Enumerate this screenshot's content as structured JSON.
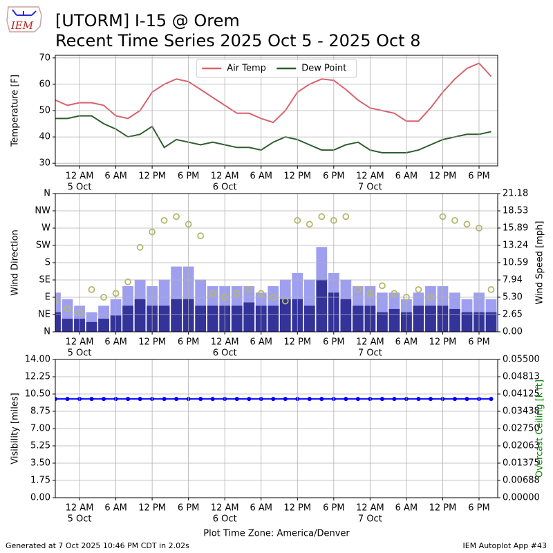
{
  "title": "[UTORM] I-15 @ Orem",
  "subtitle": "Recent Time Series 2025 Oct 5 - 2025 Oct 8",
  "logo_text": "IEM",
  "footer_left": "Generated at 7 Oct 2025 10:46 PM CDT in 2.02s",
  "footer_right": "IEM Autoplot App #43",
  "chart_data": [
    {
      "type": "line",
      "ylabel": "Temperature [F]",
      "legend": "upper center",
      "grid": true,
      "xlim": [
        "2025-10-04T20:00",
        "2025-10-07T21:05"
      ],
      "xticks": [
        {
          "value": "2025-10-05T00:00",
          "label": "12 AM"
        },
        {
          "value": "2025-10-05T06:00",
          "label": "6 AM"
        },
        {
          "value": "2025-10-05T12:00",
          "label": "12 PM"
        },
        {
          "value": "2025-10-05T18:00",
          "label": "6 PM"
        },
        {
          "value": "2025-10-06T00:00",
          "label": "12 AM"
        },
        {
          "value": "2025-10-06T06:00",
          "label": "6 AM"
        },
        {
          "value": "2025-10-06T12:00",
          "label": "12 PM"
        },
        {
          "value": "2025-10-06T18:00",
          "label": "6 PM"
        },
        {
          "value": "2025-10-07T00:00",
          "label": "12 AM"
        },
        {
          "value": "2025-10-07T06:00",
          "label": "6 AM"
        },
        {
          "value": "2025-10-07T12:00",
          "label": "12 PM"
        },
        {
          "value": "2025-10-07T18:00",
          "label": "6 PM"
        }
      ],
      "xdaylabels": [
        {
          "value": "2025-10-05T00:00",
          "label": "5 Oct"
        },
        {
          "value": "2025-10-06T00:00",
          "label": "6 Oct"
        },
        {
          "value": "2025-10-07T00:00",
          "label": "7 Oct"
        }
      ],
      "ylim": [
        29,
        71
      ],
      "yticks": [
        30,
        40,
        50,
        60,
        70
      ],
      "x": [
        "2025-10-04T20:00",
        "2025-10-04T22:00",
        "2025-10-05T00:00",
        "2025-10-05T02:00",
        "2025-10-05T04:00",
        "2025-10-05T06:00",
        "2025-10-05T08:00",
        "2025-10-05T10:00",
        "2025-10-05T12:00",
        "2025-10-05T14:00",
        "2025-10-05T16:00",
        "2025-10-05T18:00",
        "2025-10-05T20:00",
        "2025-10-05T22:00",
        "2025-10-06T00:00",
        "2025-10-06T02:00",
        "2025-10-06T04:00",
        "2025-10-06T06:00",
        "2025-10-06T08:00",
        "2025-10-06T10:00",
        "2025-10-06T12:00",
        "2025-10-06T14:00",
        "2025-10-06T16:00",
        "2025-10-06T18:00",
        "2025-10-06T20:00",
        "2025-10-06T22:00",
        "2025-10-07T00:00",
        "2025-10-07T02:00",
        "2025-10-07T04:00",
        "2025-10-07T06:00",
        "2025-10-07T08:00",
        "2025-10-07T10:00",
        "2025-10-07T12:00",
        "2025-10-07T14:00",
        "2025-10-07T16:00",
        "2025-10-07T18:00",
        "2025-10-07T20:00"
      ],
      "series": [
        {
          "name": "Air Temp",
          "color": "#d9626b",
          "values": [
            54,
            52,
            53,
            53,
            52,
            48,
            47,
            50,
            57,
            60,
            62,
            61,
            58,
            55,
            52,
            49,
            49,
            47,
            45.5,
            50,
            57,
            60,
            62,
            61.5,
            58,
            54,
            51,
            50,
            49,
            46,
            46,
            51,
            57,
            62,
            66,
            68,
            63
          ]
        },
        {
          "name": "Dew Point",
          "color": "#2d5e2d",
          "values": [
            47,
            47,
            48,
            48,
            45,
            43,
            40,
            41,
            44,
            36,
            39,
            38,
            37,
            38,
            37,
            36,
            36,
            35,
            38,
            40,
            39,
            37,
            35,
            35,
            37,
            38,
            35,
            34,
            34,
            34,
            35,
            37,
            39,
            40,
            41,
            41,
            42
          ]
        }
      ]
    },
    {
      "type": "combo",
      "ylabel": "Wind Direction",
      "y2label": "Wind Speed [mph]",
      "grid": true,
      "xlim": [
        "2025-10-04T20:00",
        "2025-10-07T21:05"
      ],
      "xticks": [
        {
          "value": "2025-10-05T00:00",
          "label": "12 AM"
        },
        {
          "value": "2025-10-05T06:00",
          "label": "6 AM"
        },
        {
          "value": "2025-10-05T12:00",
          "label": "12 PM"
        },
        {
          "value": "2025-10-05T18:00",
          "label": "6 PM"
        },
        {
          "value": "2025-10-06T00:00",
          "label": "12 AM"
        },
        {
          "value": "2025-10-06T06:00",
          "label": "6 AM"
        },
        {
          "value": "2025-10-06T12:00",
          "label": "12 PM"
        },
        {
          "value": "2025-10-06T18:00",
          "label": "6 PM"
        },
        {
          "value": "2025-10-07T00:00",
          "label": "12 AM"
        },
        {
          "value": "2025-10-07T06:00",
          "label": "6 AM"
        },
        {
          "value": "2025-10-07T12:00",
          "label": "12 PM"
        },
        {
          "value": "2025-10-07T18:00",
          "label": "6 PM"
        }
      ],
      "xdaylabels": [
        {
          "value": "2025-10-05T00:00",
          "label": "5 Oct"
        },
        {
          "value": "2025-10-06T00:00",
          "label": "6 Oct"
        },
        {
          "value": "2025-10-07T00:00",
          "label": "7 Oct"
        }
      ],
      "ylim": [
        0,
        360
      ],
      "yticks": [
        {
          "value": 0,
          "label": "N"
        },
        {
          "value": 45,
          "label": "NE"
        },
        {
          "value": 90,
          "label": "E"
        },
        {
          "value": 135,
          "label": "SE"
        },
        {
          "value": 180,
          "label": "S"
        },
        {
          "value": 225,
          "label": "SW"
        },
        {
          "value": 270,
          "label": "W"
        },
        {
          "value": 315,
          "label": "NW"
        },
        {
          "value": 360,
          "label": "N"
        }
      ],
      "y2lim": [
        0,
        21.18
      ],
      "y2ticks": [
        {
          "value": 0,
          "label": "0.00"
        },
        2.65,
        {
          "value": 5.3,
          "label": "5.30"
        },
        7.94,
        10.59,
        13.24,
        15.89,
        18.53,
        21.18
      ],
      "x": [
        "2025-10-04T20:00",
        "2025-10-04T22:00",
        "2025-10-05T00:00",
        "2025-10-05T02:00",
        "2025-10-05T04:00",
        "2025-10-05T06:00",
        "2025-10-05T08:00",
        "2025-10-05T10:00",
        "2025-10-05T12:00",
        "2025-10-05T14:00",
        "2025-10-05T16:00",
        "2025-10-05T18:00",
        "2025-10-05T20:00",
        "2025-10-05T22:00",
        "2025-10-06T00:00",
        "2025-10-06T02:00",
        "2025-10-06T04:00",
        "2025-10-06T06:00",
        "2025-10-06T08:00",
        "2025-10-06T10:00",
        "2025-10-06T12:00",
        "2025-10-06T14:00",
        "2025-10-06T16:00",
        "2025-10-06T18:00",
        "2025-10-06T20:00",
        "2025-10-06T22:00",
        "2025-10-07T00:00",
        "2025-10-07T02:00",
        "2025-10-07T04:00",
        "2025-10-07T06:00",
        "2025-10-07T08:00",
        "2025-10-07T10:00",
        "2025-10-07T12:00",
        "2025-10-07T14:00",
        "2025-10-07T16:00",
        "2025-10-07T18:00",
        "2025-10-07T20:00"
      ],
      "series": [
        {
          "kind": "bar",
          "axis": "y2",
          "color": "#9f9ff0",
          "values": [
            6,
            5,
            4,
            3,
            4,
            5,
            7,
            8,
            7,
            8,
            10,
            10,
            8,
            7,
            7,
            7,
            7,
            6,
            7,
            8,
            9,
            8,
            13,
            9,
            8,
            7,
            7,
            6,
            6,
            5,
            6,
            7,
            7,
            6,
            5,
            6,
            5
          ]
        },
        {
          "kind": "bar",
          "axis": "y2",
          "color": "#33339a",
          "values": [
            3,
            2,
            2,
            1.5,
            2,
            2.5,
            4,
            5,
            4,
            4,
            5,
            5,
            4,
            4,
            4,
            4,
            4.5,
            4,
            4,
            5,
            5,
            4,
            8,
            6,
            5,
            4,
            4,
            3,
            3.5,
            3,
            4,
            4,
            4,
            3.5,
            3,
            3,
            3
          ]
        },
        {
          "kind": "scatter",
          "color": "#b5b86a",
          "values": [
            80,
            60,
            50,
            110,
            90,
            100,
            130,
            220,
            260,
            290,
            300,
            280,
            250,
            100,
            90,
            100,
            110,
            100,
            90,
            80,
            290,
            280,
            300,
            290,
            300,
            110,
            100,
            120,
            100,
            90,
            110,
            90,
            300,
            290,
            280,
            270,
            110
          ]
        }
      ]
    },
    {
      "type": "line",
      "ylabel": "Visibility [miles]",
      "y2label": "Overcast Ceiling [k ft]",
      "y2label_color": "#008000",
      "xlabel": "Plot Time Zone: America/Denver",
      "grid": true,
      "markers": true,
      "xlim": [
        "2025-10-04T20:00",
        "2025-10-07T21:05"
      ],
      "xticks": [
        {
          "value": "2025-10-05T00:00",
          "label": "12 AM"
        },
        {
          "value": "2025-10-05T06:00",
          "label": "6 AM"
        },
        {
          "value": "2025-10-05T12:00",
          "label": "12 PM"
        },
        {
          "value": "2025-10-05T18:00",
          "label": "6 PM"
        },
        {
          "value": "2025-10-06T00:00",
          "label": "12 AM"
        },
        {
          "value": "2025-10-06T06:00",
          "label": "6 AM"
        },
        {
          "value": "2025-10-06T12:00",
          "label": "12 PM"
        },
        {
          "value": "2025-10-06T18:00",
          "label": "6 PM"
        },
        {
          "value": "2025-10-07T00:00",
          "label": "12 AM"
        },
        {
          "value": "2025-10-07T06:00",
          "label": "6 AM"
        },
        {
          "value": "2025-10-07T12:00",
          "label": "12 PM"
        },
        {
          "value": "2025-10-07T18:00",
          "label": "6 PM"
        }
      ],
      "xdaylabels": [
        {
          "value": "2025-10-05T00:00",
          "label": "5 Oct"
        },
        {
          "value": "2025-10-06T00:00",
          "label": "6 Oct"
        },
        {
          "value": "2025-10-07T00:00",
          "label": "7 Oct"
        }
      ],
      "ylim": [
        0,
        14
      ],
      "yticks": [
        {
          "value": 0,
          "label": "0.00"
        },
        1.75,
        {
          "value": 3.5,
          "label": "3.50"
        },
        5.25,
        {
          "value": 7,
          "label": "7.00"
        },
        8.75,
        {
          "value": 10.5,
          "label": "10.50"
        },
        12.25,
        {
          "value": 14,
          "label": "14.00"
        }
      ],
      "y2lim": [
        0,
        0.055
      ],
      "y2ticks": [
        {
          "value": 0,
          "label": "0.00000"
        },
        {
          "value": 0.006875,
          "label": "0.00688"
        },
        {
          "value": 0.01375,
          "label": "0.01375"
        },
        {
          "value": 0.020625,
          "label": "0.02063"
        },
        {
          "value": 0.0275,
          "label": "0.02750"
        },
        {
          "value": 0.034375,
          "label": "0.03438"
        },
        {
          "value": 0.04125,
          "label": "0.04125"
        },
        {
          "value": 0.048125,
          "label": "0.04813"
        },
        {
          "value": 0.055,
          "label": "0.05500"
        }
      ],
      "x": [
        "2025-10-04T20:00",
        "2025-10-04T22:00",
        "2025-10-05T00:00",
        "2025-10-05T02:00",
        "2025-10-05T04:00",
        "2025-10-05T06:00",
        "2025-10-05T08:00",
        "2025-10-05T10:00",
        "2025-10-05T12:00",
        "2025-10-05T14:00",
        "2025-10-05T16:00",
        "2025-10-05T18:00",
        "2025-10-05T20:00",
        "2025-10-05T22:00",
        "2025-10-06T00:00",
        "2025-10-06T02:00",
        "2025-10-06T04:00",
        "2025-10-06T06:00",
        "2025-10-06T08:00",
        "2025-10-06T10:00",
        "2025-10-06T12:00",
        "2025-10-06T14:00",
        "2025-10-06T16:00",
        "2025-10-06T18:00",
        "2025-10-06T20:00",
        "2025-10-06T22:00",
        "2025-10-07T00:00",
        "2025-10-07T02:00",
        "2025-10-07T04:00",
        "2025-10-07T06:00",
        "2025-10-07T08:00",
        "2025-10-07T10:00",
        "2025-10-07T12:00",
        "2025-10-07T14:00",
        "2025-10-07T16:00",
        "2025-10-07T18:00",
        "2025-10-07T20:00"
      ],
      "series": [
        {
          "color": "#0000ff",
          "values": [
            10,
            10,
            10,
            10,
            10,
            10,
            10,
            10,
            10,
            10,
            10,
            10,
            10,
            10,
            10,
            10,
            10,
            10,
            10,
            10,
            10,
            10,
            10,
            10,
            10,
            10,
            10,
            10,
            10,
            10,
            10,
            10,
            10,
            10,
            10,
            10,
            10
          ]
        }
      ]
    }
  ]
}
